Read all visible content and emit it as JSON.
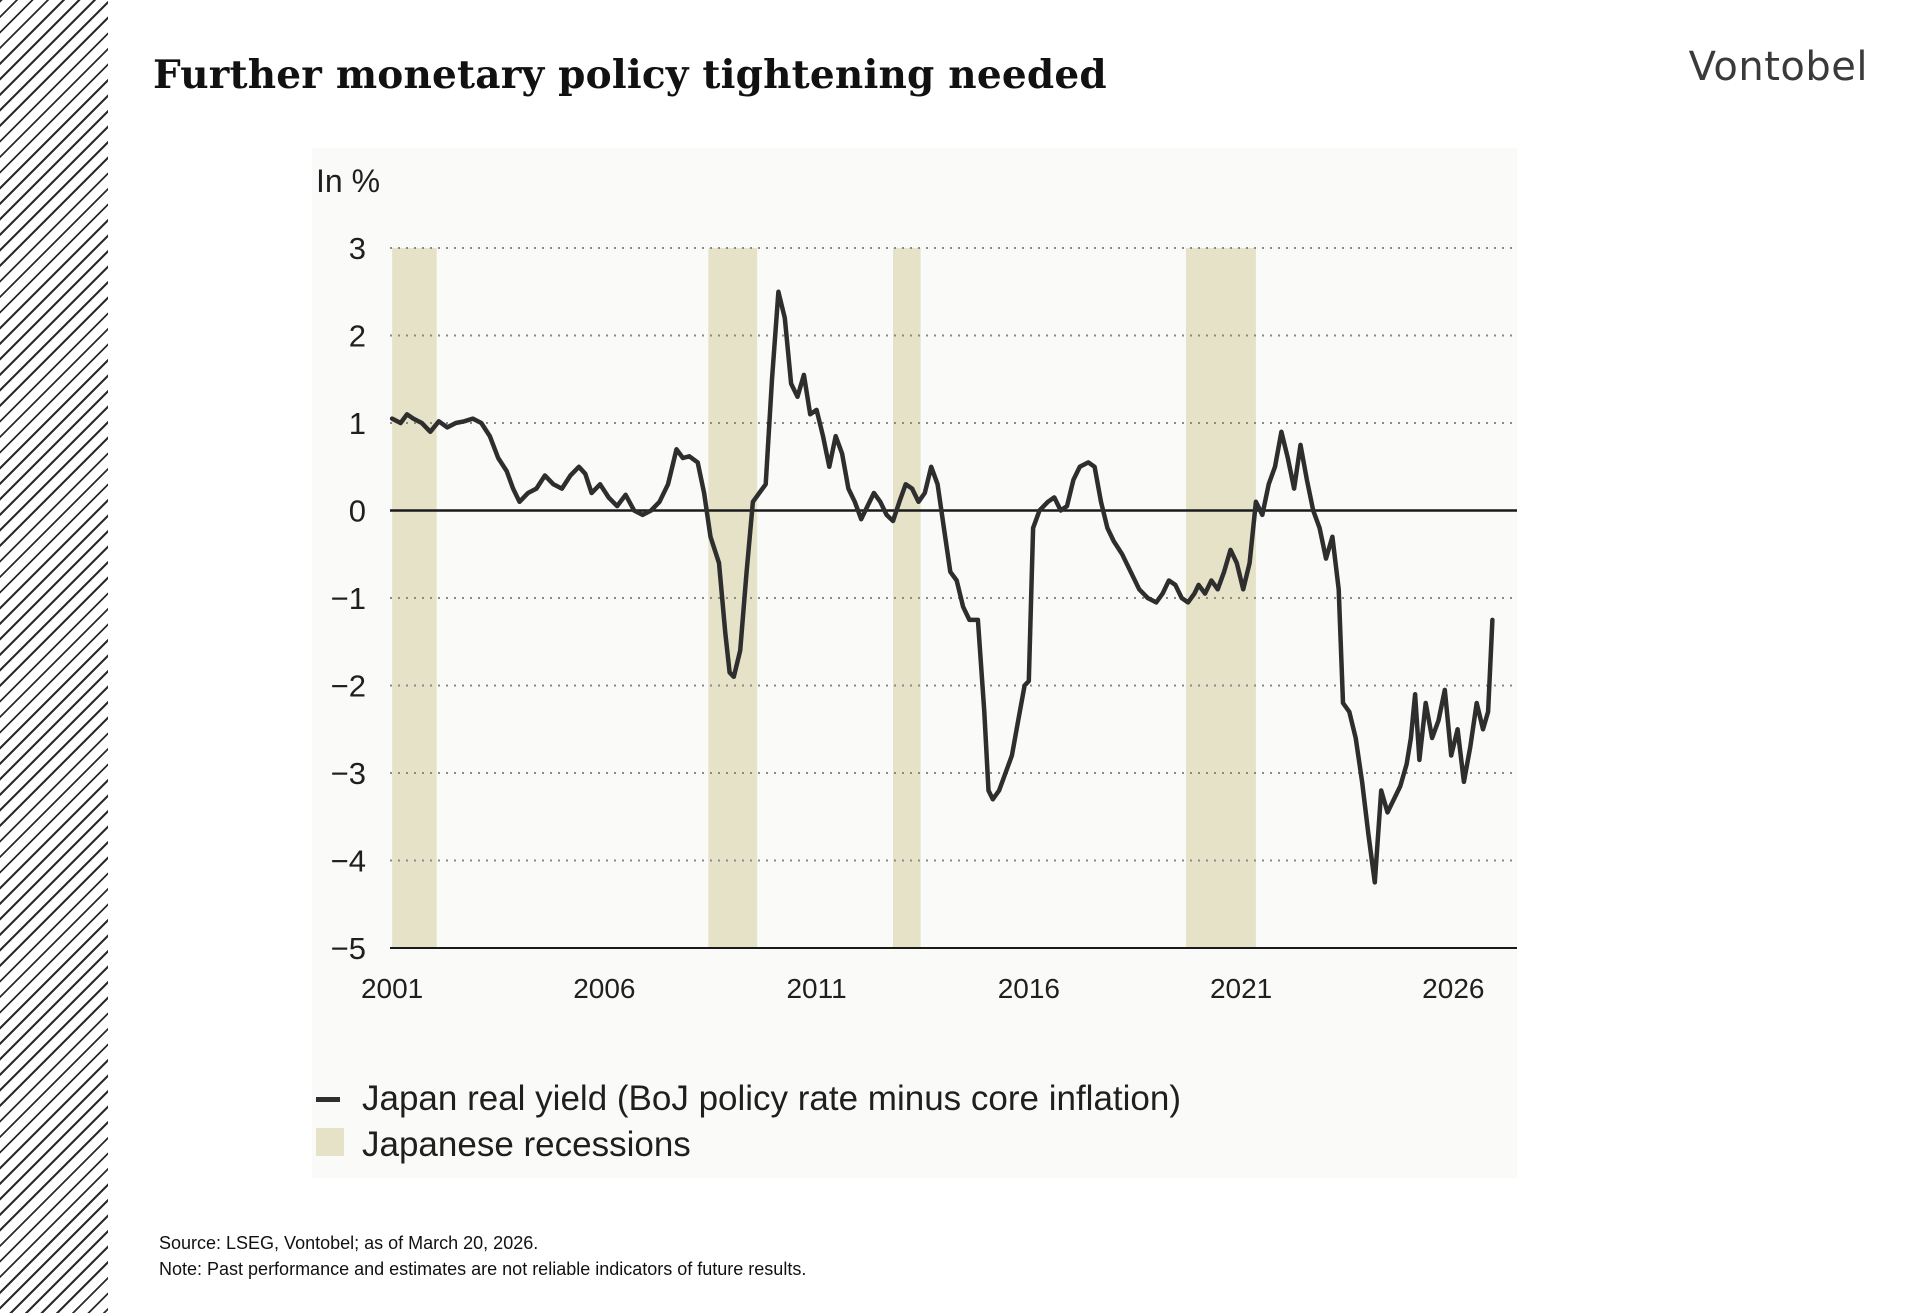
{
  "page": {
    "title": "Further monetary policy tightening needed",
    "brand": "Vontobel",
    "source": "Source: LSEG, Vontobel; as of March 20, 2026.",
    "note": "Note: Past performance and estimates are not reliable indicators of future results."
  },
  "colors": {
    "line": "#2e2e2e",
    "recession": "#e6e2c8",
    "zero_line": "#1a1a1a",
    "grid": "#8a8a8a"
  },
  "chart_data": {
    "type": "line",
    "title": "",
    "ylabel": "In %",
    "xlabel": "",
    "xlim": [
      2000.95,
      2027.5
    ],
    "ylim": [
      -5,
      3
    ],
    "x_ticks": [
      2001,
      2006,
      2011,
      2016,
      2021,
      2026
    ],
    "x_tick_labels": [
      "2001",
      "2006",
      "2011",
      "2016",
      "2021",
      "2026"
    ],
    "y_ticks": [
      3,
      2,
      1,
      0,
      -1,
      -2,
      -3,
      -4,
      -5
    ],
    "y_tick_labels": [
      "3",
      "2",
      "1",
      "0",
      "−1",
      "−2",
      "−3",
      "−4",
      "−5"
    ],
    "grid": "horizontal dotted",
    "legend_position": "bottom-left",
    "legend": [
      {
        "label": "Japan real yield (BoJ policy rate minus core inflation)",
        "kind": "line"
      },
      {
        "label": "Japanese recessions",
        "kind": "band"
      }
    ],
    "recessions": [
      {
        "start": 2001.0,
        "end": 2002.05
      },
      {
        "start": 2008.45,
        "end": 2009.6
      },
      {
        "start": 2012.8,
        "end": 2013.45
      },
      {
        "start": 2019.7,
        "end": 2021.35
      }
    ],
    "series": [
      {
        "name": "Japan real yield (BoJ policy rate minus core inflation)",
        "points": [
          [
            2001.0,
            1.05
          ],
          [
            2001.2,
            1.0
          ],
          [
            2001.35,
            1.1
          ],
          [
            2001.5,
            1.05
          ],
          [
            2001.7,
            1.0
          ],
          [
            2001.9,
            0.9
          ],
          [
            2002.1,
            1.02
          ],
          [
            2002.3,
            0.95
          ],
          [
            2002.5,
            1.0
          ],
          [
            2002.7,
            1.02
          ],
          [
            2002.9,
            1.05
          ],
          [
            2003.1,
            1.0
          ],
          [
            2003.3,
            0.85
          ],
          [
            2003.5,
            0.6
          ],
          [
            2003.7,
            0.45
          ],
          [
            2003.85,
            0.25
          ],
          [
            2004.0,
            0.1
          ],
          [
            2004.2,
            0.2
          ],
          [
            2004.4,
            0.25
          ],
          [
            2004.6,
            0.4
          ],
          [
            2004.8,
            0.3
          ],
          [
            2005.0,
            0.25
          ],
          [
            2005.2,
            0.4
          ],
          [
            2005.4,
            0.5
          ],
          [
            2005.55,
            0.42
          ],
          [
            2005.7,
            0.2
          ],
          [
            2005.9,
            0.3
          ],
          [
            2006.1,
            0.15
          ],
          [
            2006.3,
            0.05
          ],
          [
            2006.5,
            0.18
          ],
          [
            2006.7,
            0.0
          ],
          [
            2006.9,
            -0.05
          ],
          [
            2007.1,
            0.0
          ],
          [
            2007.3,
            0.1
          ],
          [
            2007.5,
            0.3
          ],
          [
            2007.7,
            0.7
          ],
          [
            2007.85,
            0.6
          ],
          [
            2008.0,
            0.62
          ],
          [
            2008.2,
            0.55
          ],
          [
            2008.35,
            0.2
          ],
          [
            2008.5,
            -0.3
          ],
          [
            2008.7,
            -0.6
          ],
          [
            2008.85,
            -1.4
          ],
          [
            2008.95,
            -1.85
          ],
          [
            2009.05,
            -1.9
          ],
          [
            2009.2,
            -1.6
          ],
          [
            2009.35,
            -0.7
          ],
          [
            2009.5,
            0.1
          ],
          [
            2009.65,
            0.2
          ],
          [
            2009.8,
            0.3
          ],
          [
            2009.95,
            1.5
          ],
          [
            2010.1,
            2.5
          ],
          [
            2010.25,
            2.2
          ],
          [
            2010.4,
            1.45
          ],
          [
            2010.55,
            1.3
          ],
          [
            2010.7,
            1.55
          ],
          [
            2010.85,
            1.1
          ],
          [
            2011.0,
            1.15
          ],
          [
            2011.15,
            0.85
          ],
          [
            2011.3,
            0.5
          ],
          [
            2011.45,
            0.85
          ],
          [
            2011.6,
            0.65
          ],
          [
            2011.75,
            0.25
          ],
          [
            2011.9,
            0.1
          ],
          [
            2012.05,
            -0.1
          ],
          [
            2012.2,
            0.05
          ],
          [
            2012.35,
            0.2
          ],
          [
            2012.5,
            0.1
          ],
          [
            2012.65,
            -0.05
          ],
          [
            2012.8,
            -0.12
          ],
          [
            2012.95,
            0.1
          ],
          [
            2013.1,
            0.3
          ],
          [
            2013.25,
            0.25
          ],
          [
            2013.4,
            0.1
          ],
          [
            2013.55,
            0.2
          ],
          [
            2013.7,
            0.5
          ],
          [
            2013.85,
            0.3
          ],
          [
            2014.0,
            -0.2
          ],
          [
            2014.15,
            -0.7
          ],
          [
            2014.3,
            -0.8
          ],
          [
            2014.45,
            -1.1
          ],
          [
            2014.6,
            -1.25
          ],
          [
            2014.8,
            -1.25
          ],
          [
            2014.95,
            -2.3
          ],
          [
            2015.05,
            -3.2
          ],
          [
            2015.15,
            -3.3
          ],
          [
            2015.3,
            -3.2
          ],
          [
            2015.45,
            -3.0
          ],
          [
            2015.6,
            -2.8
          ],
          [
            2015.75,
            -2.4
          ],
          [
            2015.9,
            -2.0
          ],
          [
            2016.0,
            -1.95
          ],
          [
            2016.1,
            -0.2
          ],
          [
            2016.25,
            0.0
          ],
          [
            2016.45,
            0.1
          ],
          [
            2016.6,
            0.15
          ],
          [
            2016.75,
            0.0
          ],
          [
            2016.9,
            0.05
          ],
          [
            2017.05,
            0.35
          ],
          [
            2017.2,
            0.5
          ],
          [
            2017.4,
            0.55
          ],
          [
            2017.55,
            0.5
          ],
          [
            2017.7,
            0.1
          ],
          [
            2017.85,
            -0.2
          ],
          [
            2018.0,
            -0.35
          ],
          [
            2018.2,
            -0.5
          ],
          [
            2018.4,
            -0.7
          ],
          [
            2018.6,
            -0.9
          ],
          [
            2018.8,
            -1.0
          ],
          [
            2019.0,
            -1.05
          ],
          [
            2019.15,
            -0.95
          ],
          [
            2019.3,
            -0.8
          ],
          [
            2019.45,
            -0.85
          ],
          [
            2019.6,
            -1.0
          ],
          [
            2019.75,
            -1.05
          ],
          [
            2019.9,
            -0.95
          ],
          [
            2020.0,
            -0.85
          ],
          [
            2020.15,
            -0.95
          ],
          [
            2020.3,
            -0.8
          ],
          [
            2020.45,
            -0.9
          ],
          [
            2020.6,
            -0.7
          ],
          [
            2020.75,
            -0.45
          ],
          [
            2020.9,
            -0.6
          ],
          [
            2021.05,
            -0.9
          ],
          [
            2021.2,
            -0.6
          ],
          [
            2021.35,
            0.1
          ],
          [
            2021.5,
            -0.05
          ],
          [
            2021.65,
            0.3
          ],
          [
            2021.8,
            0.5
          ],
          [
            2021.95,
            0.9
          ],
          [
            2022.1,
            0.6
          ],
          [
            2022.25,
            0.25
          ],
          [
            2022.4,
            0.75
          ],
          [
            2022.55,
            0.35
          ],
          [
            2022.7,
            0.0
          ],
          [
            2022.85,
            -0.2
          ],
          [
            2023.0,
            -0.55
          ],
          [
            2023.15,
            -0.3
          ],
          [
            2023.3,
            -0.9
          ],
          [
            2023.4,
            -2.2
          ],
          [
            2023.55,
            -2.3
          ],
          [
            2023.7,
            -2.6
          ],
          [
            2023.85,
            -3.1
          ],
          [
            2024.0,
            -3.7
          ],
          [
            2024.15,
            -4.25
          ],
          [
            2024.3,
            -3.2
          ],
          [
            2024.45,
            -3.45
          ],
          [
            2024.6,
            -3.3
          ],
          [
            2024.75,
            -3.15
          ],
          [
            2024.9,
            -2.9
          ],
          [
            2025.0,
            -2.6
          ],
          [
            2025.1,
            -2.1
          ],
          [
            2025.2,
            -2.85
          ],
          [
            2025.35,
            -2.2
          ],
          [
            2025.5,
            -2.6
          ],
          [
            2025.65,
            -2.4
          ],
          [
            2025.8,
            -2.05
          ],
          [
            2025.95,
            -2.8
          ],
          [
            2026.1,
            -2.5
          ],
          [
            2026.25,
            -3.1
          ],
          [
            2026.4,
            -2.7
          ],
          [
            2026.55,
            -2.2
          ],
          [
            2026.7,
            -2.5
          ],
          [
            2026.82,
            -2.3
          ],
          [
            2026.92,
            -1.25
          ]
        ]
      }
    ]
  }
}
